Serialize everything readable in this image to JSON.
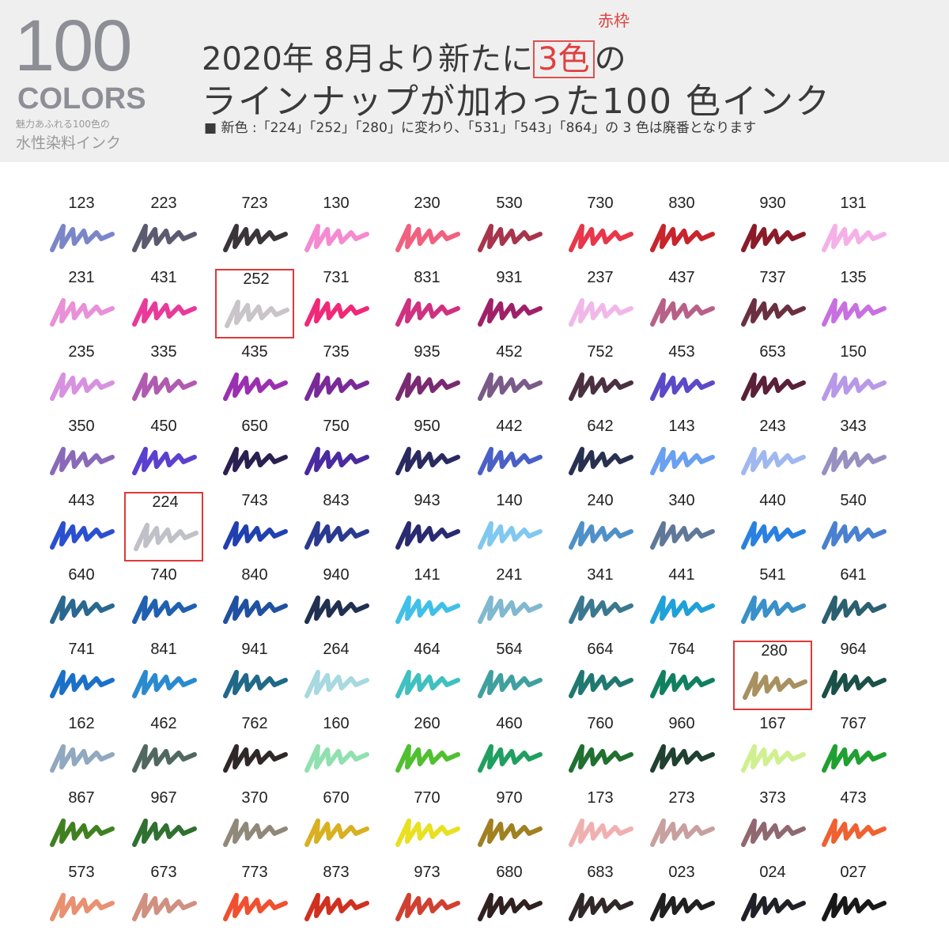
{
  "header": {
    "big_number": "100",
    "colors_label": "COLORS",
    "tagline": "魅力あふれる100色の",
    "subtitle": "水性染料インク",
    "headline_pre": "2020年 8月より新たに",
    "headline_box": "3色",
    "headline_post": "の",
    "box_caption": "赤枠",
    "headline2": "ラインナップが加わった100 色インク",
    "note": "■ 新色 :「224」「252」「280」に変わり、「531」「543」「864」の 3 色は廃番となります",
    "accent_color": "#e04040"
  },
  "grid": {
    "rows": [
      [
        [
          "123",
          "#7b86c8"
        ],
        [
          "223",
          "#5a5a70"
        ],
        [
          "723",
          "#3a3538"
        ],
        [
          "130",
          "#f58ad0"
        ],
        [
          "230",
          "#f0607f"
        ],
        [
          "530",
          "#a8344c"
        ],
        [
          "730",
          "#e8364a"
        ],
        [
          "830",
          "#c8242c"
        ],
        [
          "930",
          "#8a1c2a"
        ],
        [
          "131",
          "#f5b0e8"
        ]
      ],
      [
        [
          "231",
          "#e890d8"
        ],
        [
          "431",
          "#e83a9a"
        ],
        [
          "252",
          "#c8c4c8",
          true
        ],
        [
          "731",
          "#f02878"
        ],
        [
          "831",
          "#d03080"
        ],
        [
          "931",
          "#a02068"
        ],
        [
          "237",
          "#f0b8e8"
        ],
        [
          "437",
          "#b86088"
        ],
        [
          "737",
          "#6a3040"
        ],
        [
          "135",
          "#c870e0"
        ]
      ],
      [
        [
          "235",
          "#d890e0"
        ],
        [
          "335",
          "#b05ab0"
        ],
        [
          "435",
          "#9a30b0"
        ],
        [
          "735",
          "#7a2a98"
        ],
        [
          "935",
          "#7a2a70"
        ],
        [
          "452",
          "#7a5a88"
        ],
        [
          "752",
          "#4a3040"
        ],
        [
          "453",
          "#5a4ac8"
        ],
        [
          "653",
          "#5a2038"
        ],
        [
          "150",
          "#b898e8"
        ]
      ],
      [
        [
          "350",
          "#8a6ab8"
        ],
        [
          "450",
          "#5a40d0"
        ],
        [
          "650",
          "#2a2050"
        ],
        [
          "750",
          "#4a2aa0"
        ],
        [
          "950",
          "#2a2a60"
        ],
        [
          "442",
          "#4a60c8"
        ],
        [
          "642",
          "#283050"
        ],
        [
          "143",
          "#6aa0f0"
        ],
        [
          "243",
          "#a0b8f0"
        ],
        [
          "343",
          "#9890c0"
        ]
      ],
      [
        [
          "443",
          "#2a50d0"
        ],
        [
          "224",
          "#c0c0c8",
          true
        ],
        [
          "743",
          "#2040b0"
        ],
        [
          "843",
          "#2a3a90"
        ],
        [
          "943",
          "#2a2a70"
        ],
        [
          "140",
          "#80c8f0"
        ],
        [
          "240",
          "#5090c8"
        ],
        [
          "340",
          "#607898"
        ],
        [
          "440",
          "#2a80e0"
        ],
        [
          "540",
          "#4a80d0"
        ]
      ],
      [
        [
          "640",
          "#2a6890"
        ],
        [
          "740",
          "#2060b0"
        ],
        [
          "840",
          "#2050a0"
        ],
        [
          "940",
          "#203050"
        ],
        [
          "141",
          "#40c0e8"
        ],
        [
          "241",
          "#80b8d0"
        ],
        [
          "341",
          "#3a7890"
        ],
        [
          "441",
          "#20a0d8"
        ],
        [
          "541",
          "#3a90c8"
        ],
        [
          "641",
          "#2a6070"
        ]
      ],
      [
        [
          "741",
          "#1a70c8"
        ],
        [
          "841",
          "#2a8ad0"
        ],
        [
          "941",
          "#206888"
        ],
        [
          "264",
          "#a8d8e0"
        ],
        [
          "464",
          "#40c0c0"
        ],
        [
          "564",
          "#40a0a0"
        ],
        [
          "664",
          "#207870"
        ],
        [
          "764",
          "#108060"
        ],
        [
          "280",
          "#a89060",
          true
        ],
        [
          "964",
          "#1a5048"
        ]
      ],
      [
        [
          "162",
          "#90a8c0"
        ],
        [
          "462",
          "#506860"
        ],
        [
          "762",
          "#302828"
        ],
        [
          "160",
          "#90e0b0"
        ],
        [
          "260",
          "#50c030"
        ],
        [
          "460",
          "#20a060"
        ],
        [
          "760",
          "#207030"
        ],
        [
          "960",
          "#204030"
        ],
        [
          "167",
          "#d0f090"
        ],
        [
          "767",
          "#20a030"
        ]
      ],
      [
        [
          "867",
          "#408020"
        ],
        [
          "967",
          "#307030"
        ],
        [
          "370",
          "#908878"
        ],
        [
          "670",
          "#d8b020"
        ],
        [
          "770",
          "#e8e020"
        ],
        [
          "970",
          "#a08020"
        ],
        [
          "173",
          "#f0b0b0"
        ],
        [
          "273",
          "#c8a0a0"
        ],
        [
          "373",
          "#906870"
        ],
        [
          "473",
          "#f06030"
        ]
      ],
      [
        [
          "573",
          "#e89070"
        ],
        [
          "673",
          "#d09080"
        ],
        [
          "773",
          "#f05030"
        ],
        [
          "873",
          "#d03020"
        ],
        [
          "973",
          "#d04030"
        ],
        [
          "680",
          "#302020"
        ],
        [
          "683",
          "#302828"
        ],
        [
          "023",
          "#202020"
        ],
        [
          "024",
          "#202028"
        ],
        [
          "027",
          "#181818"
        ]
      ]
    ]
  }
}
